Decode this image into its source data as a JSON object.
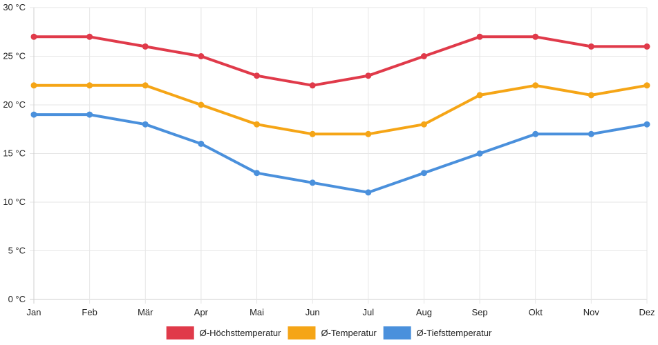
{
  "chart_data": {
    "type": "line",
    "title": "",
    "xlabel": "",
    "ylabel": "",
    "categories": [
      "Jan",
      "Feb",
      "Mär",
      "Apr",
      "Mai",
      "Jun",
      "Jul",
      "Aug",
      "Sep",
      "Okt",
      "Nov",
      "Dez"
    ],
    "ylim": [
      0,
      30
    ],
    "y_ticks": [
      0,
      5,
      10,
      15,
      20,
      25,
      30
    ],
    "y_tick_suffix": " °C",
    "grid": true,
    "legend_position": "bottom-center",
    "series": [
      {
        "name": "Ø-Höchsttemperatur",
        "color": "#e03a4a",
        "values": [
          27,
          27,
          26,
          25,
          23,
          22,
          23,
          25,
          27,
          27,
          26,
          26
        ]
      },
      {
        "name": "Ø-Temperatur",
        "color": "#f5a516",
        "values": [
          22,
          22,
          22,
          20,
          18,
          17,
          17,
          18,
          21,
          22,
          21,
          22
        ]
      },
      {
        "name": "Ø-Tiefsttemperatur",
        "color": "#4a90dc",
        "values": [
          19,
          19,
          18,
          16,
          13,
          12,
          11,
          13,
          15,
          17,
          17,
          18
        ]
      }
    ]
  }
}
